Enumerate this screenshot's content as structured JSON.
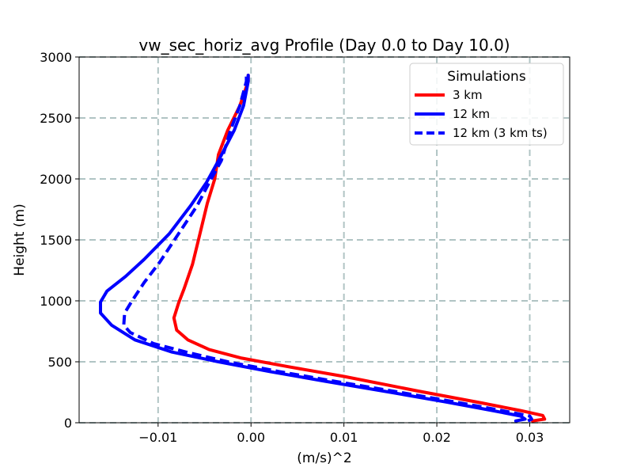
{
  "chart_data": {
    "type": "line",
    "title": "vw_sec_horiz_avg Profile (Day 0.0 to Day 10.0)",
    "xlabel": "(m/s)^2",
    "ylabel": "Height (m)",
    "xlim": [
      -0.0185,
      0.0343
    ],
    "ylim": [
      0,
      3000
    ],
    "x_ticks": [
      -0.01,
      0.0,
      0.01,
      0.02,
      0.03
    ],
    "x_tick_labels": [
      "−0.01",
      "0.00",
      "0.01",
      "0.02",
      "0.03"
    ],
    "y_ticks": [
      0,
      500,
      1000,
      1500,
      2000,
      2500,
      3000
    ],
    "y_tick_labels": [
      "0",
      "500",
      "1000",
      "1500",
      "2000",
      "2500",
      "3000"
    ],
    "grid": true,
    "legend": {
      "title": "Simulations",
      "position": "upper-right",
      "entries": [
        "3 km",
        "12 km",
        "12 km (3 km ts)"
      ]
    },
    "series": [
      {
        "name": "3 km",
        "color": "#ff0000",
        "dash": "solid",
        "points": [
          [
            0.0303,
            15
          ],
          [
            0.0316,
            30
          ],
          [
            0.0314,
            60
          ],
          [
            0.029,
            100
          ],
          [
            0.025,
            160
          ],
          [
            0.018,
            260
          ],
          [
            0.01,
            380
          ],
          [
            0.004,
            460
          ],
          [
            -0.001,
            530
          ],
          [
            -0.0045,
            600
          ],
          [
            -0.0068,
            680
          ],
          [
            -0.008,
            760
          ],
          [
            -0.0083,
            860
          ],
          [
            -0.0078,
            980
          ],
          [
            -0.0072,
            1100
          ],
          [
            -0.0063,
            1300
          ],
          [
            -0.0055,
            1550
          ],
          [
            -0.0047,
            1800
          ],
          [
            -0.0039,
            2000
          ],
          [
            -0.0035,
            2200
          ],
          [
            -0.0025,
            2400
          ],
          [
            -0.0012,
            2600
          ],
          [
            -0.0003,
            2800
          ],
          [
            -0.0003,
            2850
          ]
        ]
      },
      {
        "name": "12 km",
        "color": "#0000ff",
        "dash": "solid",
        "points": [
          [
            0.0285,
            15
          ],
          [
            0.0295,
            30
          ],
          [
            0.029,
            55
          ],
          [
            0.026,
            100
          ],
          [
            0.021,
            170
          ],
          [
            0.015,
            250
          ],
          [
            0.008,
            340
          ],
          [
            0.002,
            420
          ],
          [
            -0.0035,
            500
          ],
          [
            -0.0085,
            580
          ],
          [
            -0.0125,
            680
          ],
          [
            -0.015,
            800
          ],
          [
            -0.0162,
            900
          ],
          [
            -0.0162,
            990
          ],
          [
            -0.0155,
            1080
          ],
          [
            -0.0135,
            1200
          ],
          [
            -0.0115,
            1340
          ],
          [
            -0.0088,
            1550
          ],
          [
            -0.0065,
            1780
          ],
          [
            -0.0048,
            1970
          ],
          [
            -0.0035,
            2150
          ],
          [
            -0.0018,
            2400
          ],
          [
            -0.0008,
            2600
          ],
          [
            -0.0003,
            2800
          ],
          [
            -0.0003,
            2850
          ]
        ]
      },
      {
        "name": "12 km (3 km ts)",
        "color": "#0000ff",
        "dash": "dashed",
        "points": [
          [
            0.0298,
            15
          ],
          [
            0.0302,
            30
          ],
          [
            0.03,
            55
          ],
          [
            0.027,
            100
          ],
          [
            0.022,
            170
          ],
          [
            0.016,
            250
          ],
          [
            0.009,
            340
          ],
          [
            0.003,
            420
          ],
          [
            -0.0025,
            500
          ],
          [
            -0.007,
            580
          ],
          [
            -0.0105,
            650
          ],
          [
            -0.013,
            740
          ],
          [
            -0.0137,
            800
          ],
          [
            -0.0136,
            900
          ],
          [
            -0.0128,
            1000
          ],
          [
            -0.0115,
            1150
          ],
          [
            -0.0098,
            1320
          ],
          [
            -0.0078,
            1550
          ],
          [
            -0.0058,
            1780
          ],
          [
            -0.0045,
            1970
          ],
          [
            -0.0032,
            2150
          ],
          [
            -0.0022,
            2400
          ],
          [
            -0.0012,
            2600
          ],
          [
            -0.0005,
            2800
          ],
          [
            -0.0005,
            2850
          ]
        ]
      }
    ]
  }
}
